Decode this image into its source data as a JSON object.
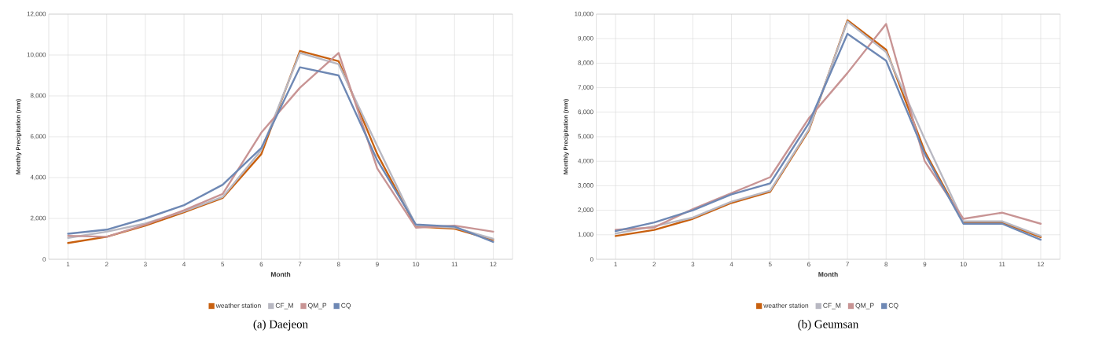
{
  "chart_data": [
    {
      "type": "line",
      "title": "(a)  Daejeon",
      "xlabel": "Month",
      "ylabel": "Monthly Precipitation  (mm)",
      "categories": [
        "1",
        "2",
        "3",
        "4",
        "5",
        "6",
        "7",
        "8",
        "9",
        "10",
        "11",
        "12"
      ],
      "series": [
        {
          "name": "weather station",
          "color": "#c8600f",
          "values": [
            800,
            1100,
            1650,
            2300,
            3000,
            5150,
            10200,
            9700,
            5150,
            1600,
            1500,
            950
          ]
        },
        {
          "name": "CF_M",
          "color": "#b8b8c2",
          "values": [
            1050,
            1350,
            1750,
            2350,
            3050,
            5350,
            10100,
            9550,
            5550,
            1650,
            1550,
            1000
          ]
        },
        {
          "name": "QM_P",
          "color": "#c89494",
          "values": [
            1150,
            1100,
            1700,
            2400,
            3200,
            6200,
            8400,
            10100,
            4450,
            1550,
            1650,
            1350
          ]
        },
        {
          "name": "CQ",
          "color": "#6e88b4",
          "values": [
            1250,
            1450,
            2000,
            2650,
            3650,
            5450,
            9400,
            9000,
            4850,
            1700,
            1600,
            850
          ]
        }
      ],
      "ylim": [
        0,
        12000
      ],
      "yticks": [
        0,
        {
          "value": 2000,
          "label": "2,000"
        },
        {
          "value": 4000,
          "label": "4,000"
        },
        {
          "value": 6000,
          "label": "6,000"
        },
        {
          "value": 8000,
          "label": "8,000"
        },
        {
          "value": 10000,
          "label": "10,000"
        },
        {
          "value": 12000,
          "label": "12,000"
        }
      ],
      "grid": true,
      "legend": "bottom",
      "line_style": "solid"
    },
    {
      "type": "line",
      "title": "(b)  Geumsan",
      "xlabel": "Month",
      "ylabel": "Monthly Precipitation  (mm)",
      "categories": [
        "1",
        "2",
        "3",
        "4",
        "5",
        "6",
        "7",
        "8",
        "9",
        "10",
        "11",
        "12"
      ],
      "series": [
        {
          "name": "weather station",
          "color": "#c8600f",
          "values": [
            950,
            1200,
            1650,
            2300,
            2750,
            5250,
            9750,
            8550,
            4400,
            1500,
            1500,
            900
          ]
        },
        {
          "name": "CF_M",
          "color": "#b8b8c2",
          "values": [
            1050,
            1350,
            1700,
            2350,
            2800,
            5300,
            9700,
            8450,
            4900,
            1550,
            1550,
            950
          ]
        },
        {
          "name": "QM_P",
          "color": "#c89494",
          "values": [
            1200,
            1300,
            2050,
            2700,
            3350,
            5750,
            7600,
            9600,
            4000,
            1650,
            1900,
            1450
          ]
        },
        {
          "name": "CQ",
          "color": "#6e88b4",
          "values": [
            1150,
            1500,
            2000,
            2650,
            3100,
            5550,
            9200,
            8100,
            4300,
            1450,
            1450,
            800
          ]
        }
      ],
      "ylim": [
        0,
        10000
      ],
      "yticks": [
        0,
        {
          "value": 1000,
          "label": "1,000"
        },
        {
          "value": 2000,
          "label": "2,000"
        },
        {
          "value": 3000,
          "label": "3,000"
        },
        {
          "value": 4000,
          "label": "4,000"
        },
        {
          "value": 5000,
          "label": "5,000"
        },
        {
          "value": 6000,
          "label": "6,000"
        },
        {
          "value": 7000,
          "label": "7,000"
        },
        {
          "value": 8000,
          "label": "8,000"
        },
        {
          "value": 9000,
          "label": "9,000"
        },
        {
          "value": 10000,
          "label": "10,000"
        }
      ],
      "grid": true,
      "legend": "bottom",
      "line_style": "solid"
    }
  ]
}
